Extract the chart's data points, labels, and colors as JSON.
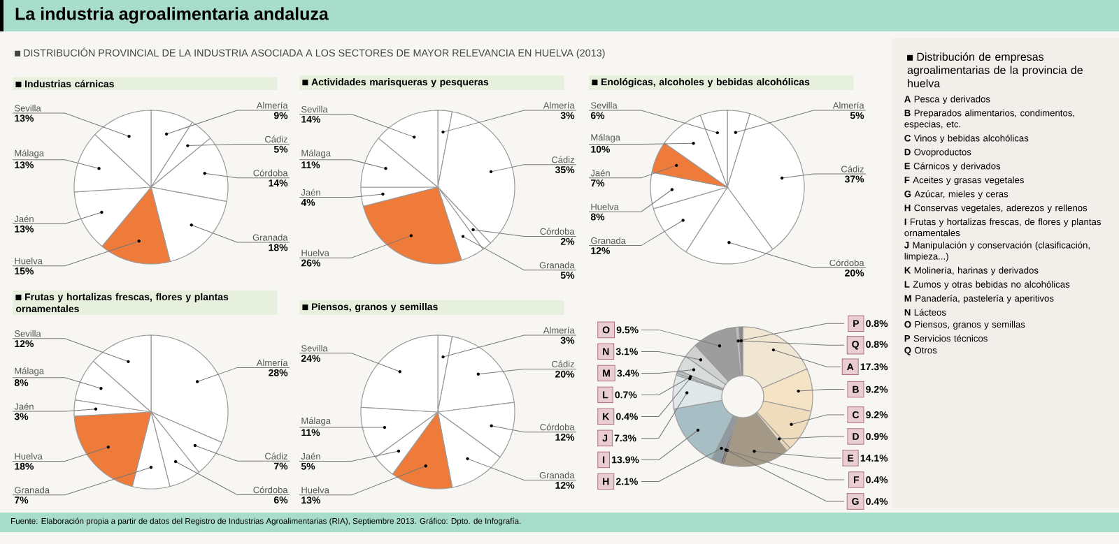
{
  "chart_data": [
    {
      "type": "pie",
      "title": "Industrias cárnicas",
      "categories": [
        "Almería",
        "Cádiz",
        "Córdoba",
        "Granada",
        "Huelva",
        "Jaén",
        "Málaga",
        "Sevilla"
      ],
      "values": [
        9,
        5,
        14,
        18,
        15,
        13,
        13,
        13
      ],
      "value_labels": [
        "9%",
        "5%",
        "14%",
        "18%",
        "15%",
        "13%",
        "13%",
        "13%"
      ],
      "colors": [
        "#ffffff",
        "#ffffff",
        "#ffffff",
        "#ffffff",
        "#ee7b3a",
        "#ffffff",
        "#ffffff",
        "#ffffff"
      ],
      "annotations": [
        "La industria agroalimentaria andaluza",
        "DISTRIBUCIÓN PROVINCIAL DE LA INDUSTRIA ASOCIADA A LOS SECTORES DE MAYOR RELEVANCIA EN HUELVA (2013)",
        "Fuente: Elaboración propia a partir de datos del Registro de Industrias Agroalimentarias (RIA), Septiembre 2013. Gráfico: Dpto. de Infografía."
      ]
    },
    {
      "type": "pie",
      "title": "Actividades marisqueras y pesqueras",
      "categories": [
        "Almería",
        "Cádiz",
        "Córdoba",
        "Granada",
        "Huelva",
        "Jaén",
        "Málaga",
        "Sevilla"
      ],
      "values": [
        3,
        35,
        2,
        5,
        26,
        4,
        11,
        14
      ],
      "value_labels": [
        "3%",
        "35%",
        "2%",
        "5%",
        "26%",
        "4%",
        "11%",
        "14%"
      ],
      "colors": [
        "#ffffff",
        "#ffffff",
        "#ffffff",
        "#ffffff",
        "#ee7b3a",
        "#ffffff",
        "#ffffff",
        "#ffffff"
      ]
    },
    {
      "type": "pie",
      "title": "Enológicas, alcoholes y bebidas alcohólicas",
      "categories": [
        "Almería",
        "Cádiz",
        "Córdoba",
        "Granada",
        "Huelva",
        "Jaén",
        "Málaga",
        "Sevilla"
      ],
      "values": [
        5,
        37,
        20,
        12,
        8,
        7,
        10,
        6
      ],
      "value_labels": [
        "5%",
        "37%",
        "20%",
        "12%",
        "8%",
        "7%",
        "10%",
        "6%"
      ],
      "colors": [
        "#ffffff",
        "#ffffff",
        "#ffffff",
        "#ffffff",
        "#ffffff",
        "#ee7b3a",
        "#ffffff",
        "#ffffff"
      ]
    },
    {
      "type": "pie",
      "title": "Frutas y hortalizas frescas, flores y plantas ornamentales",
      "categories": [
        "Almería",
        "Cádiz",
        "Córdoba",
        "Granada",
        "Huelva",
        "Jaén",
        "Málaga",
        "Sevilla"
      ],
      "values": [
        28,
        7,
        6,
        7,
        18,
        3,
        8,
        12
      ],
      "value_labels": [
        "28%",
        "7%",
        "6%",
        "7%",
        "18%",
        "3%",
        "8%",
        "12%"
      ],
      "colors": [
        "#ffffff",
        "#ffffff",
        "#ffffff",
        "#ffffff",
        "#ee7b3a",
        "#ffffff",
        "#ffffff",
        "#ffffff"
      ]
    },
    {
      "type": "pie",
      "title": "Piensos, granos y semillas",
      "categories": [
        "Almería",
        "Cádiz",
        "Córdoba",
        "Granada",
        "Huelva",
        "Jaén",
        "Málaga",
        "Sevilla"
      ],
      "values": [
        3,
        20,
        12,
        12,
        13,
        5,
        11,
        24
      ],
      "value_labels": [
        "3%",
        "20%",
        "12%",
        "12%",
        "13%",
        "5%",
        "11%",
        "24%"
      ],
      "colors": [
        "#ffffff",
        "#ffffff",
        "#ffffff",
        "#ffffff",
        "#ee7b3a",
        "#ffffff",
        "#ffffff",
        "#ffffff"
      ]
    },
    {
      "type": "donut",
      "title": "Distribución de empresas agroalimentarias de la provincia de huelva",
      "categories": [
        "A",
        "B",
        "C",
        "D",
        "E",
        "F",
        "G",
        "H",
        "I",
        "J",
        "K",
        "L",
        "M",
        "N",
        "O",
        "P",
        "Q"
      ],
      "values": [
        17.3,
        9.2,
        9.2,
        0.9,
        14.1,
        0.4,
        0.4,
        2.1,
        13.9,
        7.3,
        0.4,
        0.7,
        3.4,
        3.1,
        9.5,
        0.8,
        0.8
      ],
      "value_labels": [
        "17.3%",
        "9.2%",
        "9.2%",
        "0.9%",
        "14.1%",
        "0.4%",
        "0.4%",
        "2.1%",
        "13.9%",
        "7.3%",
        "0.4%",
        "0.7%",
        "3.4%",
        "3.1%",
        "9.5%",
        "0.8%",
        "0.8%"
      ],
      "colors": [
        "#f1e6d2",
        "#f4e3c4",
        "#efdcbc",
        "#e9d6b7",
        "#a49886",
        "#7a6e60",
        "#5e554c",
        "#8e9aa0",
        "#a7bec4",
        "#dfe7e8",
        "#c8d2d4",
        "#b9bfc1",
        "#d9dcdc",
        "#cfd0d0",
        "#9d9d9d",
        "#bdbdbd",
        "#8a8a8a"
      ],
      "annotations": [
        "Pesca y derivados",
        "Preparados alimentarios, condimentos, especias, etc.",
        "Vinos y bebidas alcohólicas",
        "Ovoproductos",
        "Cárnicos y derivados",
        "Aceites y grasas vegetales",
        "Azúcar, mieles y ceras",
        "Conservas vegetales, aderezos y rellenos",
        "Frutas y hortalizas frescas, de flores y plantas ornamentales",
        "Manipulación y conservación (clasificación, limpieza...)",
        "Molinería, harinas y derivados",
        "Zumos y otras bebidas no alcohólicas",
        "Panadería, pastelería y aperitivos",
        "Lácteos",
        "Piensos, granos y semillas",
        "Servicios técnicos",
        "Otros"
      ]
    }
  ]
}
